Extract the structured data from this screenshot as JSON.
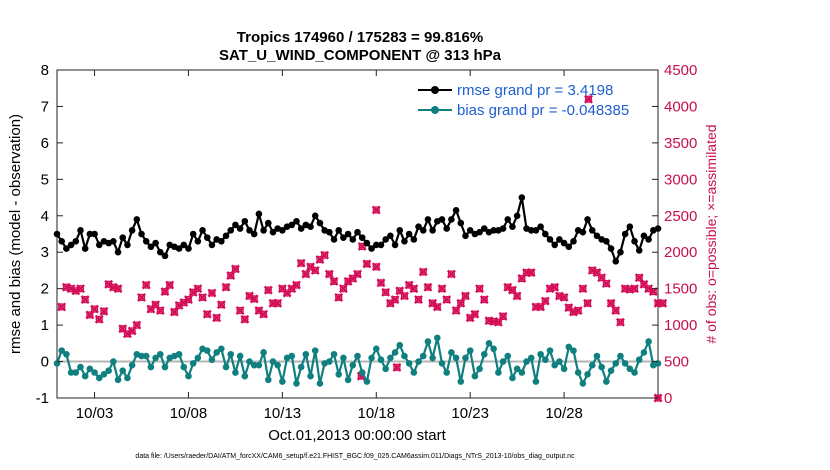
{
  "chart_data": {
    "type": "line",
    "title": "Tropics 174960 / 175283 = 99.816%",
    "subtitle": "SAT_U_WIND_COMPONENT @ 313 hPa",
    "xlabel": "Oct.01,2013 00:00:00 start",
    "ylabel": "rmse and bias (model - observation)",
    "y2label": "# of obs: o=possible; ×=assimilated",
    "footer": "data file: /Users/raeder/DAI/ATM_forcXX/CAM6_setup/f.e21.FHIST_BGC.f09_025.CAM6assim.011/Diags_NTrS_2013-10/obs_diag_output.nc",
    "xlim": [
      1,
      33
    ],
    "ylim": [
      -1,
      8
    ],
    "y2lim": [
      0,
      4500
    ],
    "xticks": [
      3,
      8,
      13,
      18,
      23,
      28
    ],
    "xtick_labels": [
      "10/03",
      "10/08",
      "10/13",
      "10/18",
      "10/23",
      "10/28"
    ],
    "yticks": [
      -1,
      0,
      1,
      2,
      3,
      4,
      5,
      6,
      7,
      8
    ],
    "ytick_labels": [
      "-1",
      "0",
      "1",
      "2",
      "3",
      "4",
      "5",
      "6",
      "7",
      "8"
    ],
    "y2ticks": [
      0,
      500,
      1000,
      1500,
      2000,
      2500,
      3000,
      3500,
      4000,
      4500
    ],
    "y2tick_labels": [
      "0",
      "500",
      "1000",
      "1500",
      "2000",
      "2500",
      "3000",
      "3500",
      "4000",
      "4500"
    ],
    "colors": {
      "rmse": "#000000",
      "bias": "#0f7f7f",
      "obs": "#d40f58",
      "legend_text": "#1f5fd0",
      "zero_line": "#b5b5b5"
    },
    "series": [
      {
        "name": "rmse grand pr = 3.4198",
        "key": "rmse",
        "values": [
          3.5,
          3.3,
          3.1,
          3.2,
          3.3,
          3.6,
          3.1,
          3.5,
          3.5,
          3.2,
          3.3,
          3.25,
          3.3,
          3.0,
          3.4,
          3.2,
          3.6,
          3.9,
          3.5,
          3.3,
          3.15,
          3.25,
          3.0,
          2.9,
          3.2,
          3.15,
          3.1,
          3.2,
          3.1,
          3.5,
          3.3,
          3.6,
          3.4,
          3.2,
          3.35,
          3.3,
          3.45,
          3.6,
          3.75,
          3.65,
          3.85,
          3.6,
          3.5,
          4.05,
          3.6,
          3.8,
          3.55,
          3.65,
          3.6,
          3.7,
          3.75,
          3.85,
          3.65,
          3.75,
          3.7,
          4.0,
          3.8,
          3.6,
          3.55,
          3.35,
          3.6,
          3.4,
          3.5,
          3.35,
          3.55,
          3.4,
          3.25,
          3.1,
          3.2,
          3.2,
          3.35,
          3.45,
          3.2,
          3.6,
          3.3,
          3.5,
          3.35,
          3.7,
          3.6,
          3.9,
          3.6,
          3.85,
          3.9,
          3.65,
          3.9,
          4.15,
          3.8,
          3.45,
          3.6,
          3.5,
          3.55,
          3.65,
          3.55,
          3.6,
          3.6,
          3.65,
          3.9,
          3.7,
          4.0,
          4.5,
          3.65,
          3.6,
          3.6,
          3.7,
          3.5,
          3.35,
          3.2,
          3.35,
          3.25,
          3.15,
          3.3,
          3.6,
          3.55,
          3.9,
          3.6,
          3.45,
          3.35,
          3.3,
          3.1,
          2.75,
          3.0,
          3.5,
          3.7,
          3.3,
          3.05,
          3.45,
          3.35,
          3.6,
          3.65
        ]
      },
      {
        "name": "bias grand pr = -0.048385",
        "key": "bias",
        "values": [
          -0.05,
          0.3,
          0.2,
          -0.3,
          -0.3,
          -0.15,
          -0.4,
          -0.2,
          -0.3,
          -0.45,
          -0.35,
          -0.25,
          0.0,
          -0.5,
          -0.25,
          -0.45,
          -0.1,
          0.2,
          0.15,
          0.15,
          -0.15,
          0.1,
          0.2,
          -0.15,
          0.1,
          0.15,
          0.2,
          -0.15,
          -0.4,
          -0.05,
          0.1,
          0.35,
          0.3,
          0.05,
          0.25,
          0.35,
          -0.15,
          0.2,
          -0.3,
          0.15,
          -0.4,
          0.0,
          -0.1,
          -0.1,
          0.25,
          -0.5,
          0.0,
          -0.1,
          -0.55,
          0.1,
          0.15,
          -0.6,
          -0.15,
          0.2,
          -0.4,
          0.3,
          -0.6,
          -0.05,
          0.0,
          0.2,
          -0.35,
          0.1,
          -0.5,
          -0.1,
          0.15,
          -0.3,
          -0.55,
          0.1,
          0.35,
          0.05,
          -0.2,
          0.1,
          0.25,
          0.45,
          0.15,
          -0.05,
          -0.3,
          0.0,
          0.15,
          0.55,
          0.1,
          0.65,
          -0.05,
          -0.3,
          0.25,
          0.1,
          -0.55,
          0.1,
          0.3,
          -0.4,
          -0.2,
          0.2,
          0.5,
          0.35,
          -0.3,
          0.0,
          0.15,
          -0.45,
          -0.2,
          -0.3,
          0.0,
          0.1,
          -0.55,
          0.2,
          0.05,
          0.3,
          -0.1,
          0.0,
          -0.2,
          0.4,
          0.3,
          -0.3,
          -0.6,
          -0.35,
          -0.1,
          0.15,
          -0.15,
          -0.55,
          -0.25,
          -0.05,
          0.15,
          -0.05,
          -0.2,
          -0.3,
          0.05,
          0.25,
          0.55,
          -0.1,
          -0.05
        ]
      },
      {
        "name": "# of obs (possible / assimilated)",
        "key": "obs",
        "values": [
          1250,
          1520,
          1500,
          1470,
          1500,
          1350,
          1140,
          1220,
          1080,
          1190,
          1560,
          1520,
          1500,
          950,
          880,
          920,
          1000,
          1380,
          1550,
          1220,
          1280,
          1200,
          1460,
          1550,
          1180,
          1270,
          1310,
          1350,
          1450,
          1500,
          1380,
          1150,
          1440,
          1100,
          1280,
          1520,
          1680,
          1770,
          1200,
          1080,
          1400,
          1360,
          1200,
          1150,
          1480,
          1300,
          1300,
          1500,
          1440,
          1500,
          1550,
          1850,
          1700,
          1800,
          1750,
          1900,
          1960,
          1700,
          1600,
          1380,
          1500,
          1600,
          1640,
          1700,
          2080,
          1840,
          0,
          1800,
          1580,
          1450,
          1300,
          1350,
          1470,
          1400,
          1550,
          1500,
          1350,
          1730,
          1520,
          1300,
          1250,
          1500,
          1350,
          1700,
          1200,
          1300,
          1400,
          1100,
          1150,
          1500,
          1350,
          1060,
          1050,
          1040,
          1120,
          1520,
          1480,
          1400,
          1640,
          1720,
          1720,
          1250,
          1250,
          1330,
          1500,
          1520,
          1400,
          1380,
          1240,
          1180,
          1200,
          1500,
          1300,
          1750,
          1720,
          1650,
          1570,
          1300,
          1200,
          1040,
          1500,
          1490,
          1500,
          1650,
          1560,
          1500,
          1460,
          1300,
          1300
        ]
      }
    ],
    "legend_position": "top-right",
    "extra_points": {
      "obs_possible_near_peak": [
        {
          "x": 18.0,
          "y": 2580
        },
        {
          "x": 29.3,
          "y": 4100
        }
      ],
      "obs_low": [
        {
          "x": 17.2,
          "y": 300
        },
        {
          "x": 19.1,
          "y": 420
        },
        {
          "x": 33.0,
          "y": 0
        }
      ],
      "rmse_single_right": [
        {
          "x": 32.6,
          "y": 2.95
        }
      ]
    }
  }
}
